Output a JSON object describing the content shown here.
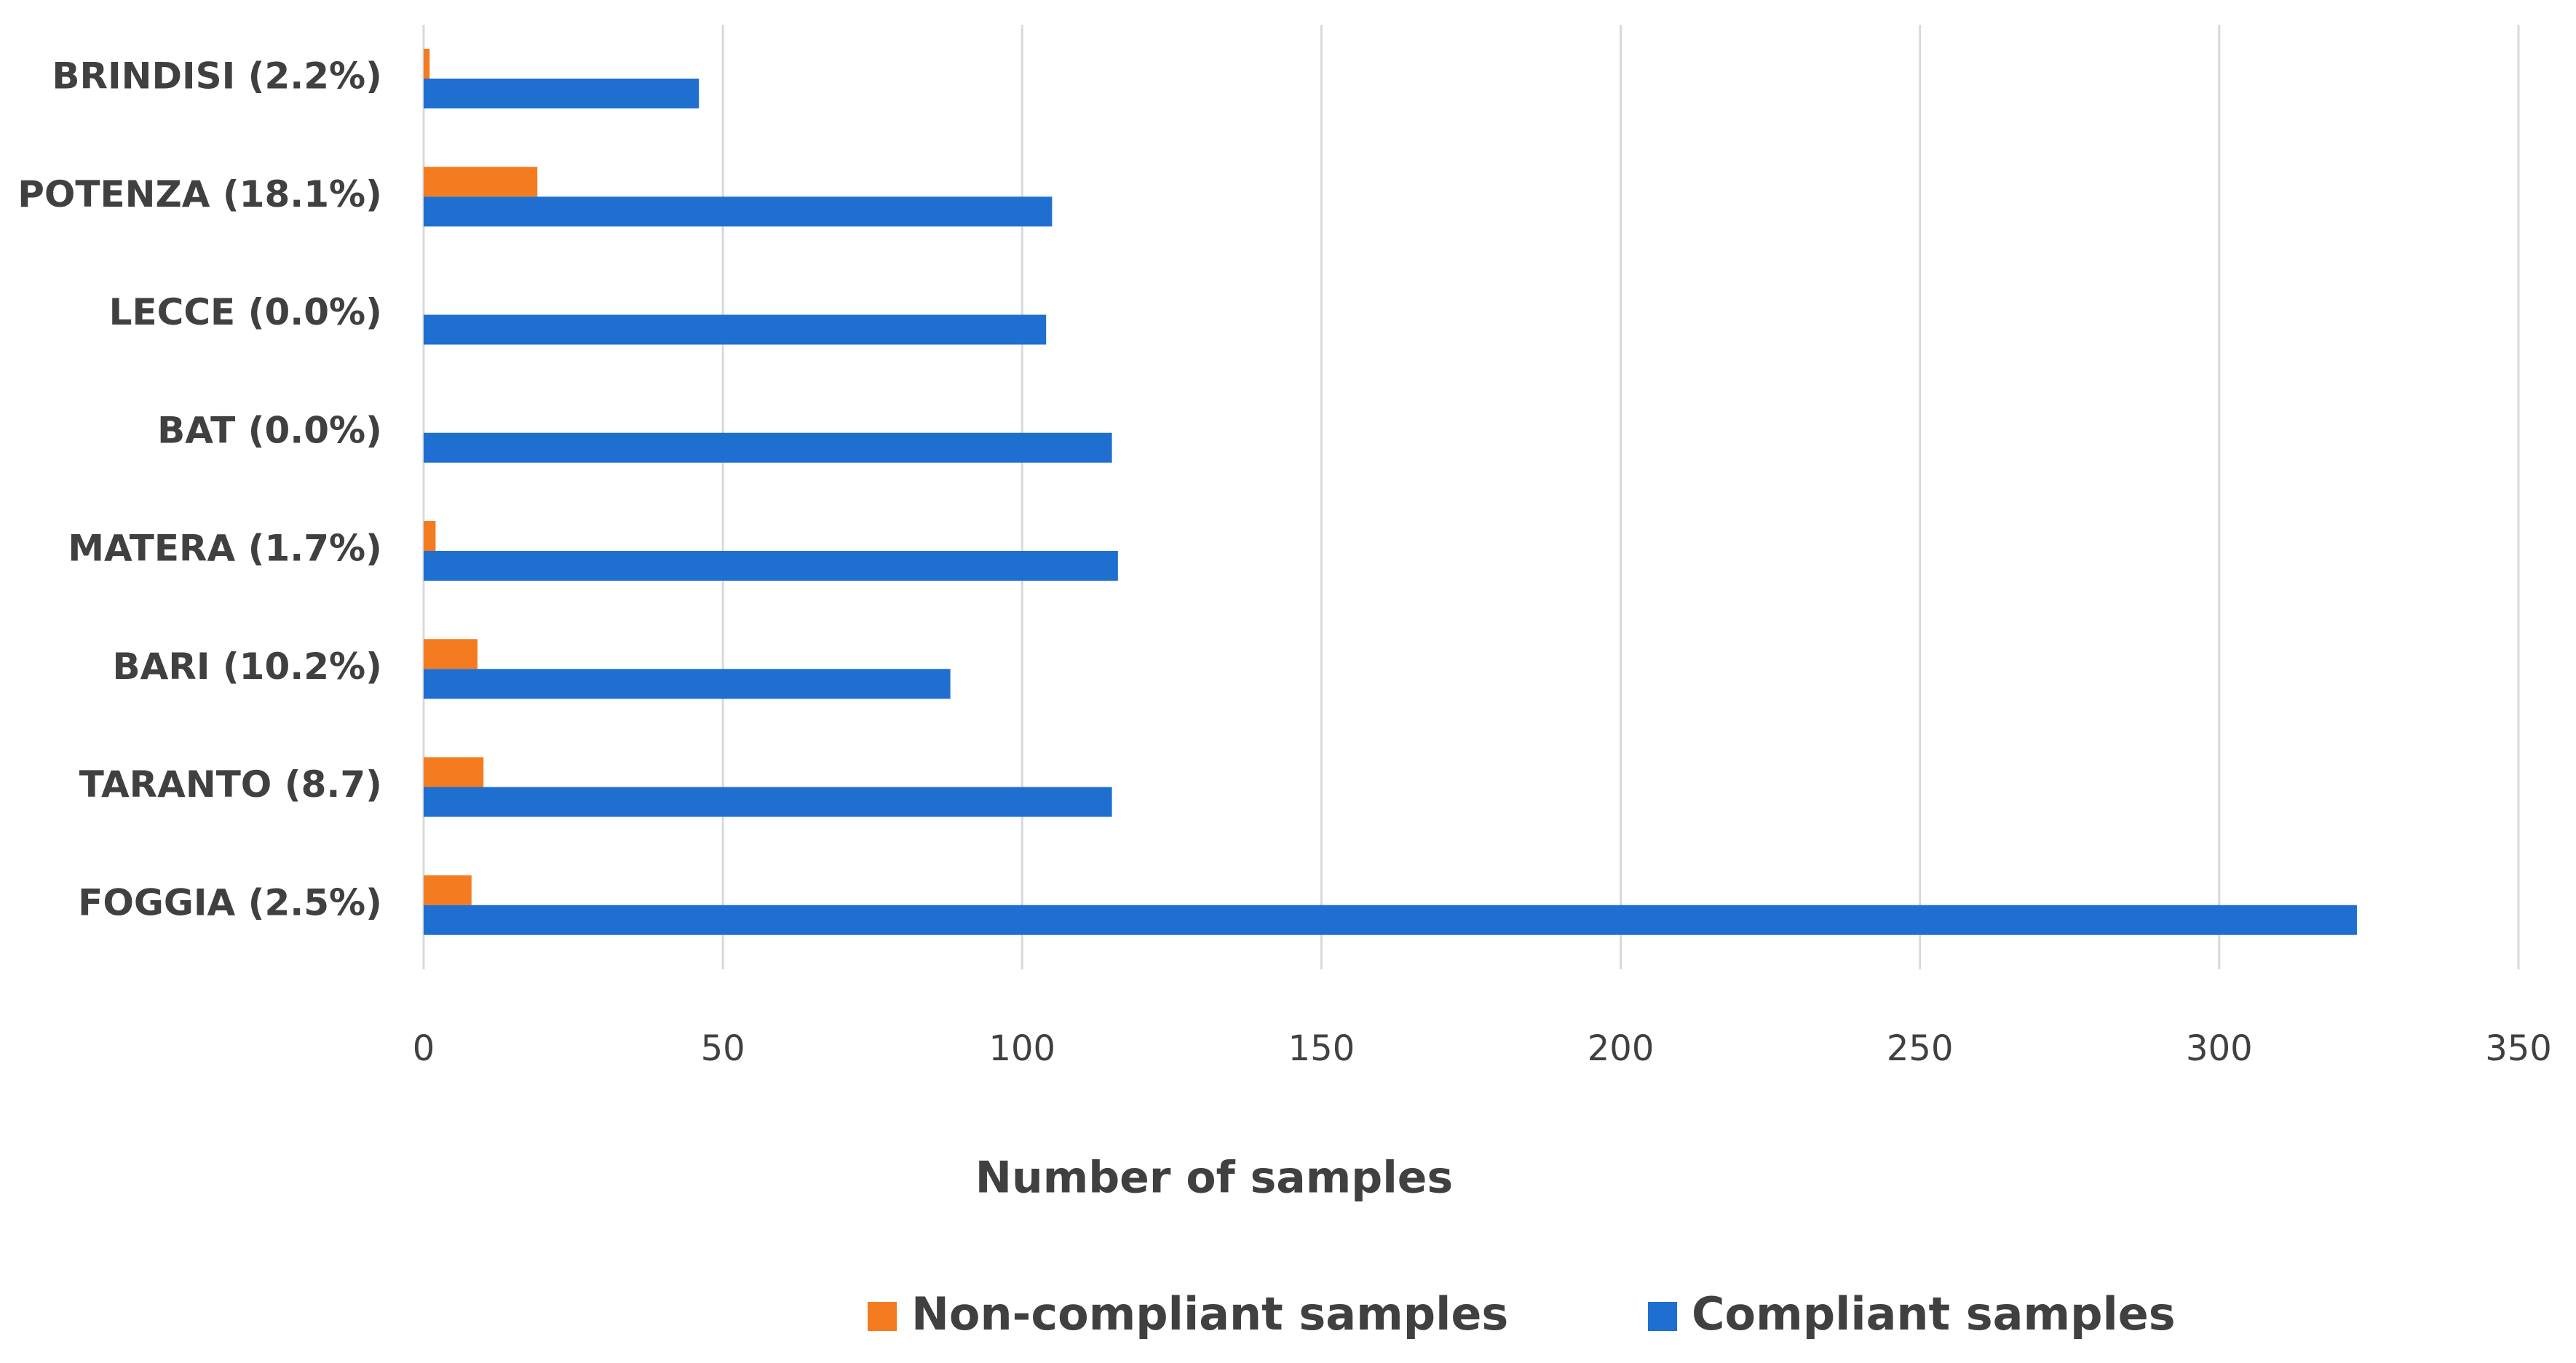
{
  "chart_data": {
    "type": "barh",
    "categories": [
      "BRINDISI (2.2%)",
      "POTENZA (18.1%)",
      "LECCE (0.0%)",
      "BAT (0.0%)",
      "MATERA (1.7%)",
      "BARI (10.2%)",
      "TARANTO (8.7)",
      "FOGGIA (2.5%)"
    ],
    "series": [
      {
        "name": "Non-compliant samples",
        "color": "#f47b20",
        "values": [
          1,
          19,
          0,
          0,
          2,
          9,
          10,
          8
        ]
      },
      {
        "name": "Compliant samples",
        "color": "#1f6fd0",
        "values": [
          46,
          105,
          104,
          115,
          116,
          88,
          115,
          323
        ]
      }
    ],
    "x_label": "Number of samples",
    "xlim": [
      0,
      350
    ],
    "xticks": [
      0,
      50,
      100,
      150,
      200,
      250,
      300,
      350
    ],
    "grid": true
  }
}
